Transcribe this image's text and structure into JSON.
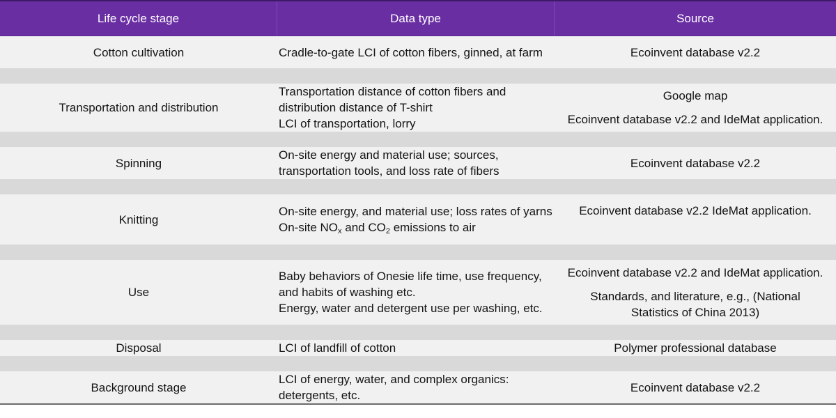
{
  "table": {
    "headers": [
      "Life cycle stage",
      "Data type",
      "Source"
    ],
    "rows": [
      {
        "stage": "Cotton cultivation",
        "data_type": [
          "Cradle-to-gate LCI of cotton fibers, ginned, at farm"
        ],
        "source": [
          "Ecoinvent database v2.2"
        ]
      },
      {
        "stage": "Transportation and distribution",
        "data_type": [
          "Transportation distance of cotton fibers and distribution distance of T-shirt",
          "LCI of transportation, lorry"
        ],
        "source": [
          "Google map",
          "Ecoinvent database v2.2 and IdeMat application."
        ]
      },
      {
        "stage": "Spinning",
        "data_type": [
          "On-site energy and material use; sources, transportation tools, and loss rate of fibers"
        ],
        "source": [
          "Ecoinvent database v2.2"
        ]
      },
      {
        "stage": "Knitting",
        "data_type": [
          "On-site energy, and material use; loss rates of yarns"
        ],
        "emissions_line": {
          "prefix": "On-site NO",
          "sub1": "x",
          "mid": " and CO",
          "sub2": "2",
          "suffix": " emissions to air"
        },
        "source": [
          "Ecoinvent database v2.2 IdeMat application."
        ]
      },
      {
        "stage": "Use",
        "data_type": [
          "Baby behaviors of Onesie life time, use frequency, and habits of washing etc.",
          "Energy, water and detergent use per washing, etc."
        ],
        "source": [
          "Ecoinvent database v2.2 and IdeMat application.",
          "Standards, and literature, e.g., (National Statistics of China 2013)"
        ]
      },
      {
        "stage": "Disposal",
        "data_type": [
          "LCI of landfill of cotton"
        ],
        "source": [
          "Polymer professional database"
        ]
      },
      {
        "stage": "Background stage",
        "data_type": [
          "LCI of energy, water, and complex organics: detergents, etc."
        ],
        "source": [
          "Ecoinvent database v2.2"
        ]
      }
    ]
  },
  "colors": {
    "header_bg": "#6a2ea3",
    "row_bg": "#f1f1f1",
    "gap_bg": "#d9d9d9"
  }
}
